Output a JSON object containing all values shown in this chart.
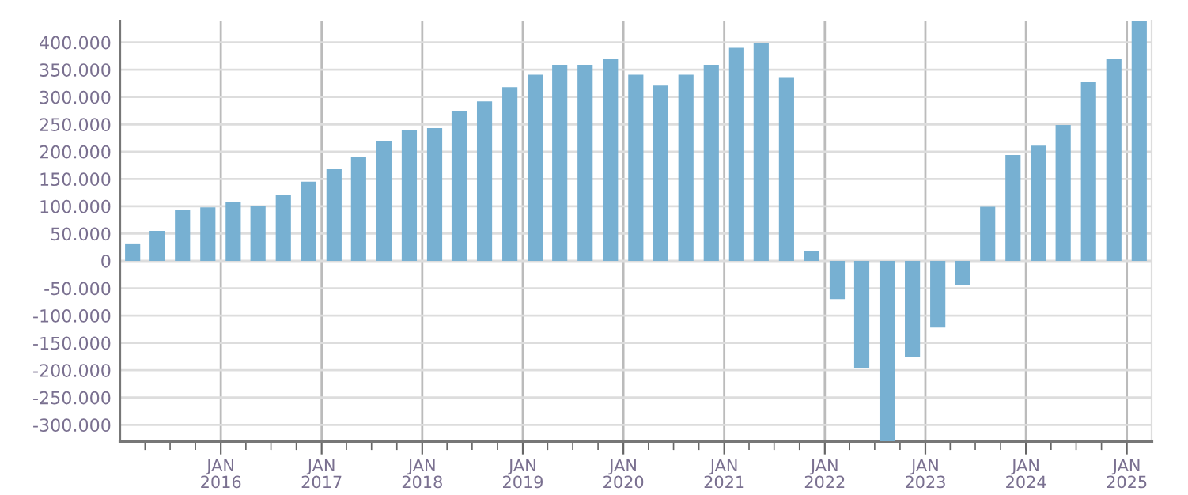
{
  "chart_data": {
    "type": "bar",
    "color": "#77b0d2",
    "x": [
      "2015-02-15",
      "2015-05-15",
      "2015-08-15",
      "2015-11-15",
      "2016-02-15",
      "2016-05-15",
      "2016-08-15",
      "2016-11-15",
      "2017-02-15",
      "2017-05-15",
      "2017-08-15",
      "2017-11-15",
      "2018-02-15",
      "2018-05-15",
      "2018-08-15",
      "2018-11-15",
      "2019-02-15",
      "2019-05-15",
      "2019-08-15",
      "2019-11-15",
      "2020-02-15",
      "2020-05-15",
      "2020-08-15",
      "2020-11-15",
      "2021-02-15",
      "2021-05-15",
      "2021-08-15",
      "2021-11-15",
      "2022-02-15",
      "2022-05-15",
      "2022-08-15",
      "2022-11-15",
      "2023-02-15",
      "2023-05-15",
      "2023-08-15",
      "2023-11-15",
      "2024-02-15",
      "2024-05-15",
      "2024-08-15",
      "2024-11-15",
      "2025-02-15"
    ],
    "values": [
      32000,
      55000,
      93000,
      98000,
      107000,
      101000,
      121000,
      145000,
      168000,
      191000,
      220000,
      240000,
      243000,
      275000,
      292000,
      318000,
      341000,
      359000,
      359000,
      370000,
      341000,
      321000,
      341000,
      359000,
      390000,
      399000,
      335000,
      18000,
      -70000,
      -197000,
      -330000,
      -176000,
      -122000,
      -44000,
      99000,
      194000,
      211000,
      249000,
      327000,
      370000,
      440000
    ],
    "xlim": [
      "2015-01-01",
      "2025-04-01"
    ],
    "xticks": [
      {
        "value": "2015-04-01",
        "label": null
      },
      {
        "value": "2015-07-01",
        "label": null
      },
      {
        "value": "2015-10-01",
        "label": null
      },
      {
        "value": "2016-01-01",
        "label": "JAN\n2016"
      },
      {
        "value": "2016-04-01",
        "label": null
      },
      {
        "value": "2016-07-01",
        "label": null
      },
      {
        "value": "2016-10-01",
        "label": null
      },
      {
        "value": "2017-01-01",
        "label": "JAN\n2017"
      },
      {
        "value": "2017-04-01",
        "label": null
      },
      {
        "value": "2017-07-01",
        "label": null
      },
      {
        "value": "2017-10-01",
        "label": null
      },
      {
        "value": "2018-01-01",
        "label": "JAN\n2018"
      },
      {
        "value": "2018-04-01",
        "label": null
      },
      {
        "value": "2018-07-01",
        "label": null
      },
      {
        "value": "2018-10-01",
        "label": null
      },
      {
        "value": "2019-01-01",
        "label": "JAN\n2019"
      },
      {
        "value": "2019-04-01",
        "label": null
      },
      {
        "value": "2019-07-01",
        "label": null
      },
      {
        "value": "2019-10-01",
        "label": null
      },
      {
        "value": "2020-01-01",
        "label": "JAN\n2020"
      },
      {
        "value": "2020-04-01",
        "label": null
      },
      {
        "value": "2020-07-01",
        "label": null
      },
      {
        "value": "2020-10-01",
        "label": null
      },
      {
        "value": "2021-01-01",
        "label": "JAN\n2021"
      },
      {
        "value": "2021-04-01",
        "label": null
      },
      {
        "value": "2021-07-01",
        "label": null
      },
      {
        "value": "2021-10-01",
        "label": null
      },
      {
        "value": "2022-01-01",
        "label": "JAN\n2022"
      },
      {
        "value": "2022-04-01",
        "label": null
      },
      {
        "value": "2022-07-01",
        "label": null
      },
      {
        "value": "2022-10-01",
        "label": null
      },
      {
        "value": "2023-01-01",
        "label": "JAN\n2023"
      },
      {
        "value": "2023-04-01",
        "label": null
      },
      {
        "value": "2023-07-01",
        "label": null
      },
      {
        "value": "2023-10-01",
        "label": null
      },
      {
        "value": "2024-01-01",
        "label": "JAN\n2024"
      },
      {
        "value": "2024-04-01",
        "label": null
      },
      {
        "value": "2024-07-01",
        "label": null
      },
      {
        "value": "2024-10-01",
        "label": null
      },
      {
        "value": "2025-01-01",
        "label": "JAN\n2025"
      }
    ],
    "ylim": [
      -330000,
      440000
    ],
    "yticks": [
      {
        "value": -300000,
        "label": "-300.000"
      },
      {
        "value": -250000,
        "label": "-250.000"
      },
      {
        "value": -200000,
        "label": "-200.000"
      },
      {
        "value": -150000,
        "label": "-150.000"
      },
      {
        "value": -100000,
        "label": "-100.000"
      },
      {
        "value": -50000,
        "label": "-50.000"
      },
      0,
      {
        "value": 50000,
        "label": "50.000"
      },
      {
        "value": 100000,
        "label": "100.000"
      },
      {
        "value": 150000,
        "label": "150.000"
      },
      {
        "value": 200000,
        "label": "200.000"
      },
      {
        "value": 250000,
        "label": "250.000"
      },
      {
        "value": 300000,
        "label": "300.000"
      },
      {
        "value": 350000,
        "label": "350.000"
      },
      {
        "value": 400000,
        "label": "400.000"
      }
    ],
    "grid": true
  }
}
